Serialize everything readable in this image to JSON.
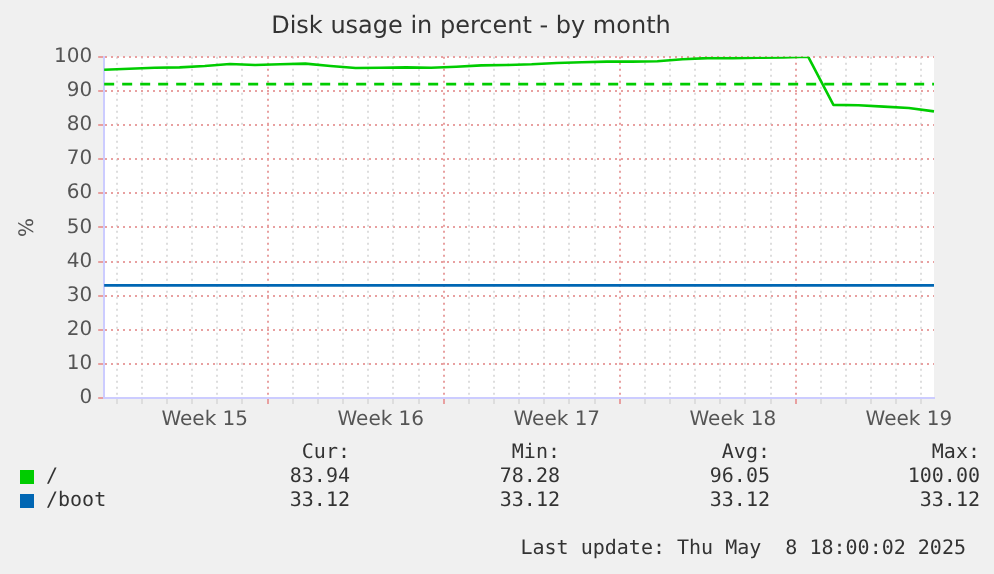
{
  "chart_data": {
    "type": "line",
    "title": "Disk usage in percent - by month",
    "ylabel": "%",
    "categories": [
      null,
      null,
      null,
      null,
      "Week 15",
      null,
      null,
      null,
      null,
      null,
      null,
      "Week 16",
      null,
      null,
      null,
      null,
      null,
      null,
      "Week 17",
      null,
      null,
      null,
      null,
      null,
      null,
      "Week 18",
      null,
      null,
      null,
      null,
      null,
      null,
      "Week 19",
      null
    ],
    "ylim": [
      0,
      100
    ],
    "yticks": [
      0,
      10,
      20,
      30,
      40,
      50,
      60,
      70,
      80,
      90,
      100
    ],
    "grid": true,
    "legend": "bottom",
    "marker": "none",
    "line_style": "solid",
    "series": [
      {
        "name": "/",
        "color": "#00cc00",
        "values": [
          96.2,
          96.5,
          96.8,
          96.9,
          97.3,
          97.9,
          97.6,
          97.8,
          98.0,
          97.3,
          96.7,
          96.8,
          96.9,
          96.8,
          97.1,
          97.5,
          97.6,
          97.8,
          98.2,
          98.4,
          98.6,
          98.6,
          98.7,
          99.3,
          99.6,
          99.6,
          99.7,
          99.8,
          100,
          85.9,
          85.8,
          85.4,
          85.0,
          84.0
        ]
      },
      {
        "name": "/boot",
        "color": "#0066b3",
        "values": [
          33,
          33,
          33,
          33,
          33,
          33,
          33,
          33,
          33,
          33,
          33,
          33,
          33,
          33,
          33,
          33,
          33,
          33,
          33,
          33,
          33,
          33,
          33,
          33,
          33,
          33,
          33,
          33,
          33,
          33,
          33,
          33,
          33,
          33
        ]
      }
    ],
    "ref_lines": [
      {
        "axis": "y",
        "value": 92,
        "color": "#00cc00",
        "line_style": "dashed"
      }
    ],
    "annotations": [
      "Cur:",
      "Min:",
      "Avg:",
      "Max:",
      "83.94",
      "78.28",
      "96.05",
      "100.00",
      "33.12",
      "33.12",
      "33.12",
      "33.12",
      "Last update: Thu May  8 18:00:02 2025"
    ]
  }
}
